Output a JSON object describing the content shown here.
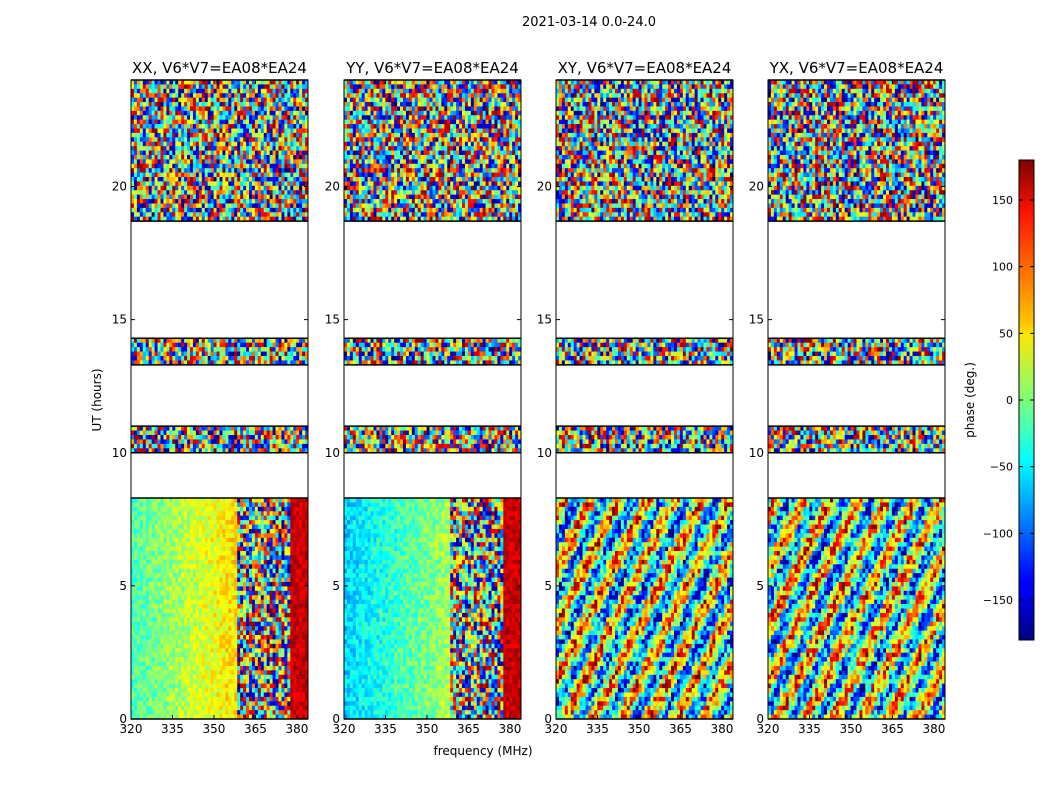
{
  "chart_data": {
    "type": "heatmap",
    "suptitle": "2021-03-14 0.0-24.0",
    "xlabel": "frequency (MHz)",
    "ylabel": "UT (hours)",
    "xlim": [
      320,
      384
    ],
    "ylim": [
      0,
      24
    ],
    "xticks": [
      320,
      335,
      350,
      365,
      380
    ],
    "xtick_labels": [
      "320",
      "335",
      "350",
      "365",
      "380"
    ],
    "yticks": [
      0,
      5,
      10,
      15,
      20
    ],
    "ytick_labels": [
      "0",
      "5",
      "10",
      "15",
      "20"
    ],
    "panels": [
      {
        "title": "XX, V6*V7=EA08*EA24",
        "pol": "XX"
      },
      {
        "title": "YY, V6*V7=EA08*EA24",
        "pol": "YY"
      },
      {
        "title": "XY, V6*V7=EA08*EA24",
        "pol": "XY"
      },
      {
        "title": "YX, V6*V7=EA08*EA24",
        "pol": "YX"
      }
    ],
    "data_ut_ranges": [
      [
        0,
        8.3
      ],
      [
        10.0,
        11.0
      ],
      [
        13.3,
        14.3
      ],
      [
        18.7,
        24.0
      ]
    ],
    "colorbar": {
      "label": "phase (deg.)",
      "range": [
        -180,
        180
      ],
      "ticks": [
        150,
        100,
        50,
        0,
        -50,
        -100,
        -150
      ],
      "tick_labels": [
        "150",
        "100",
        "50",
        "0",
        "−50",
        "−100",
        "−150"
      ],
      "colormap": "jet"
    }
  }
}
